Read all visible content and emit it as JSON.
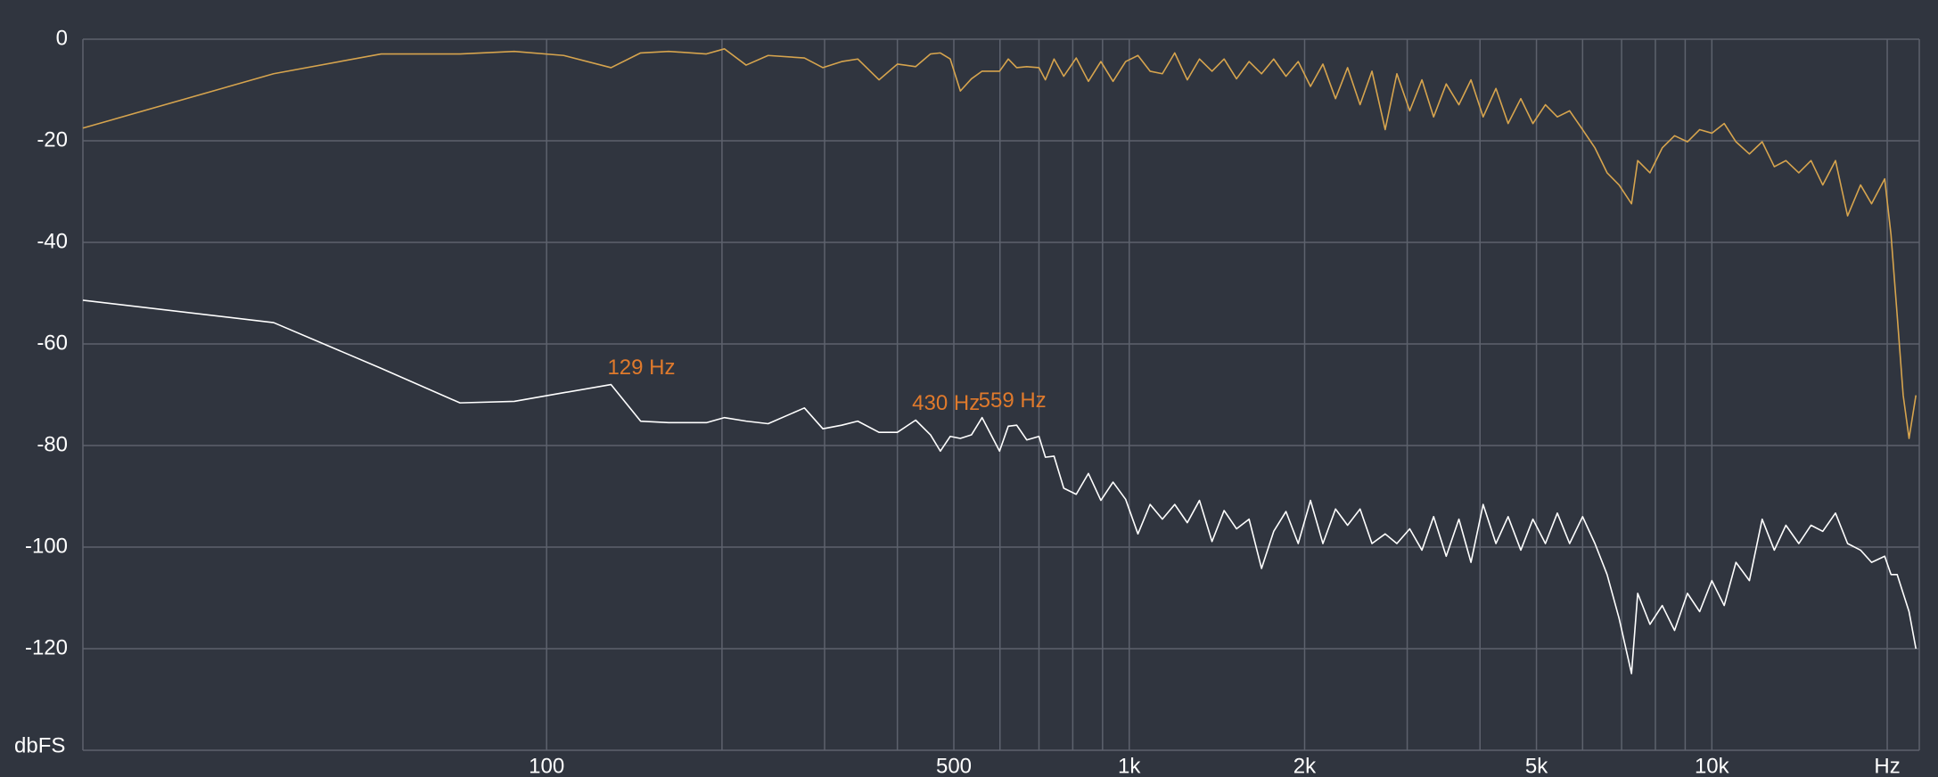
{
  "chart_data": {
    "type": "line",
    "log_x": true,
    "grid": true,
    "y_label": "dbFS",
    "xlim": [
      16,
      22700
    ],
    "ylim": [
      -140,
      0
    ],
    "xticks": [
      100,
      500,
      {
        "value": 1000,
        "label": "1k"
      },
      {
        "value": 2000,
        "label": "2k"
      },
      {
        "value": 5000,
        "label": "5k"
      },
      {
        "value": 10000,
        "label": "10k"
      },
      {
        "value": 20000,
        "label": "Hz"
      }
    ],
    "xgrid_minor": [
      200,
      300,
      400,
      600,
      700,
      800,
      900,
      3000,
      4000,
      6000,
      7000,
      8000,
      9000
    ],
    "yticks": [
      0,
      -20,
      -40,
      -60,
      -80,
      -100,
      -120
    ],
    "x": [
      16,
      34,
      52,
      71,
      88,
      107,
      129,
      145,
      162,
      188,
      202,
      220,
      240,
      277,
      298,
      321,
      342,
      372,
      400,
      430,
      456,
      474,
      493,
      513,
      536,
      559,
      599,
      620,
      641,
      667,
      700,
      718,
      743,
      772,
      811,
      851,
      894,
      938,
      986,
      1035,
      1086,
      1140,
      1197,
      1258,
      1320,
      1387,
      1455,
      1528,
      1606,
      1687,
      1770,
      1858,
      1950,
      2047,
      2150,
      2260,
      2370,
      2490,
      2610,
      2750,
      2880,
      3030,
      3180,
      3330,
      3500,
      3680,
      3860,
      4050,
      4260,
      4470,
      4700,
      4930,
      5180,
      5430,
      5700,
      6000,
      6300,
      6610,
      6930,
      7280,
      7460,
      7830,
      8220,
      8630,
      9080,
      9530,
      10000,
      10500,
      11000,
      11600,
      12200,
      12800,
      13400,
      14100,
      14800,
      15500,
      16300,
      17100,
      18000,
      18800,
      19800,
      20300,
      20800,
      21300,
      21800,
      22400
    ],
    "series": [
      {
        "color": "#d6a44e",
        "values": [
          -17.5,
          -6.8,
          -2.9,
          -2.9,
          -2.4,
          -3.2,
          -5.6,
          -2.7,
          -2.4,
          -2.9,
          -1.9,
          -5.1,
          -3.2,
          -3.7,
          -5.6,
          -4.4,
          -3.9,
          -8.0,
          -4.9,
          -5.4,
          -2.9,
          -2.7,
          -3.9,
          -10.2,
          -7.8,
          -6.3,
          -6.3,
          -3.9,
          -5.6,
          -5.4,
          -5.6,
          -8.0,
          -3.9,
          -7.3,
          -3.7,
          -8.3,
          -4.4,
          -8.3,
          -4.4,
          -3.2,
          -6.3,
          -6.8,
          -2.7,
          -8.0,
          -3.9,
          -6.3,
          -3.9,
          -7.8,
          -4.4,
          -6.8,
          -3.9,
          -7.3,
          -4.4,
          -9.3,
          -4.9,
          -11.7,
          -5.6,
          -12.9,
          -6.3,
          -17.8,
          -6.8,
          -14.1,
          -8.0,
          -15.3,
          -8.8,
          -12.9,
          -8.0,
          -15.3,
          -9.7,
          -16.6,
          -11.7,
          -16.6,
          -12.9,
          -15.3,
          -14.1,
          -17.8,
          -21.4,
          -26.3,
          -28.7,
          -32.4,
          -23.9,
          -26.3,
          -21.4,
          -19.0,
          -20.2,
          -17.8,
          -18.5,
          -16.6,
          -20.2,
          -22.6,
          -20.2,
          -25.1,
          -23.9,
          -26.3,
          -23.9,
          -28.7,
          -23.9,
          -34.8,
          -28.7,
          -32.4,
          -27.5,
          -38.5,
          -54.3,
          -70.1,
          -78.6,
          -70.1
        ]
      },
      {
        "color": "#ffffff",
        "values": [
          -51.4,
          -55.8,
          -64.8,
          -71.6,
          -71.3,
          -69.6,
          -68.0,
          -75.2,
          -75.5,
          -75.5,
          -74.5,
          -75.2,
          -75.7,
          -72.6,
          -76.7,
          -76.0,
          -75.2,
          -77.4,
          -77.4,
          -75.0,
          -77.9,
          -81.1,
          -78.2,
          -78.6,
          -77.9,
          -74.5,
          -81.1,
          -76.2,
          -76.0,
          -78.9,
          -78.2,
          -82.3,
          -82.1,
          -88.4,
          -89.6,
          -85.5,
          -90.8,
          -87.2,
          -90.6,
          -97.4,
          -91.6,
          -94.5,
          -91.6,
          -95.2,
          -90.8,
          -98.9,
          -92.8,
          -96.4,
          -94.5,
          -104.2,
          -96.9,
          -93.0,
          -99.3,
          -90.8,
          -99.3,
          -92.5,
          -95.7,
          -92.5,
          -99.3,
          -97.4,
          -99.3,
          -96.4,
          -100.6,
          -94.0,
          -101.8,
          -94.5,
          -103.0,
          -91.6,
          -99.3,
          -94.0,
          -100.6,
          -94.5,
          -99.3,
          -93.3,
          -99.3,
          -94.0,
          -99.3,
          -105.4,
          -114.0,
          -124.9,
          -109.1,
          -115.2,
          -111.5,
          -116.4,
          -109.1,
          -112.7,
          -106.6,
          -111.5,
          -103.0,
          -106.6,
          -94.5,
          -100.6,
          -95.7,
          -99.3,
          -95.7,
          -96.9,
          -93.3,
          -99.3,
          -100.6,
          -103.0,
          -101.8,
          -105.4,
          -105.4,
          -109.1,
          -112.7,
          -120.0
        ]
      }
    ],
    "annotation_color": "#e07a2c",
    "annotations": [
      {
        "text": "129 Hz",
        "x": 129,
        "y": -68.0
      },
      {
        "text": "430 Hz",
        "x": 430,
        "y": -75.0
      },
      {
        "text": "559 Hz",
        "x": 559,
        "y": -74.5
      }
    ]
  }
}
